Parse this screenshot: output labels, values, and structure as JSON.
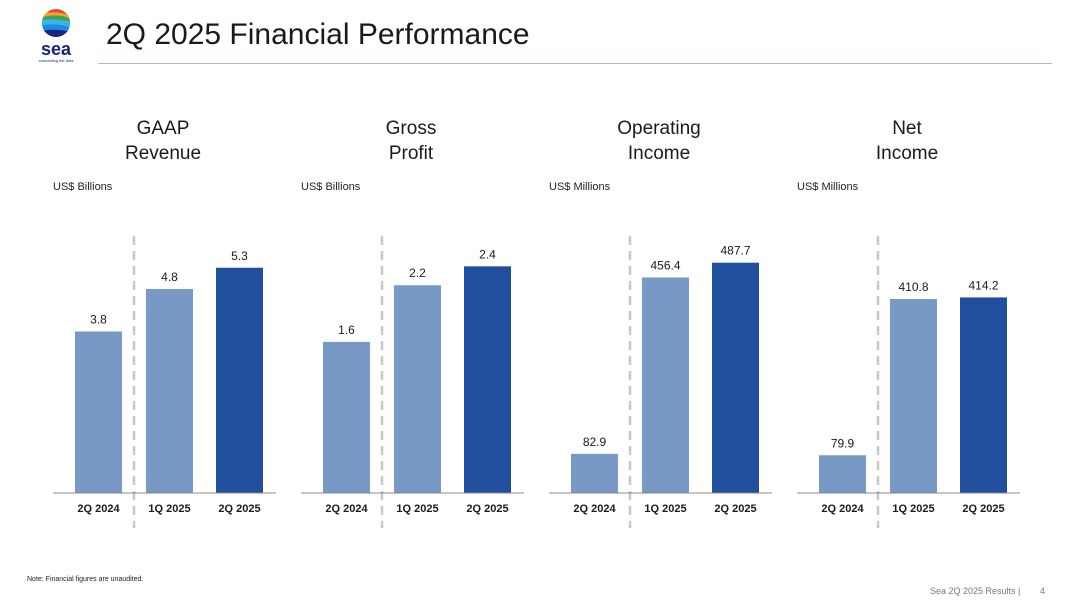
{
  "header": {
    "title": "2Q 2025 Financial Performance",
    "logo_text": "sea",
    "logo_tagline": "connecting the dots"
  },
  "colors": {
    "prior_bar": "#7899c5",
    "current_bar": "#20509d",
    "axis": "#888888",
    "divider": "#c8c8c8"
  },
  "chart_data": [
    {
      "type": "bar",
      "title": "GAAP Revenue",
      "title_lines": [
        "GAAP",
        "Revenue"
      ],
      "ylabel": "US$ Billions",
      "categories": [
        "2Q 2024",
        "1Q 2025",
        "2Q 2025"
      ],
      "values": [
        3.8,
        4.8,
        5.3
      ],
      "labels": [
        "3.8",
        "4.8",
        "5.3"
      ],
      "ylim": [
        0,
        6.0
      ]
    },
    {
      "type": "bar",
      "title": "Gross Profit",
      "title_lines": [
        "Gross",
        "Profit"
      ],
      "ylabel": "US$ Billions",
      "categories": [
        "2Q 2024",
        "1Q 2025",
        "2Q 2025"
      ],
      "values": [
        1.6,
        2.2,
        2.4
      ],
      "labels": [
        "1.6",
        "2.2",
        "2.4"
      ],
      "ylim": [
        0,
        2.7
      ]
    },
    {
      "type": "bar",
      "title": "Operating Income",
      "title_lines": [
        "Operating",
        "Income"
      ],
      "ylabel": "US$ Millions",
      "categories": [
        "2Q 2024",
        "1Q 2025",
        "2Q 2025"
      ],
      "values": [
        82.9,
        456.4,
        487.7
      ],
      "labels": [
        "82.9",
        "456.4",
        "487.7"
      ],
      "ylim": [
        0,
        540
      ]
    },
    {
      "type": "bar",
      "title": "Net Income",
      "title_lines": [
        "Net",
        "Income"
      ],
      "ylabel": "US$ Millions",
      "categories": [
        "2Q 2024",
        "1Q 2025",
        "2Q 2025"
      ],
      "values": [
        79.9,
        410.8,
        414.2
      ],
      "labels": [
        "79.9",
        "410.8",
        "414.2"
      ],
      "ylim": [
        0,
        540
      ]
    }
  ],
  "footer": {
    "note": "Note: Financial figures are unaudited.",
    "source": "Sea 2Q 2025 Results |",
    "page": "4"
  }
}
